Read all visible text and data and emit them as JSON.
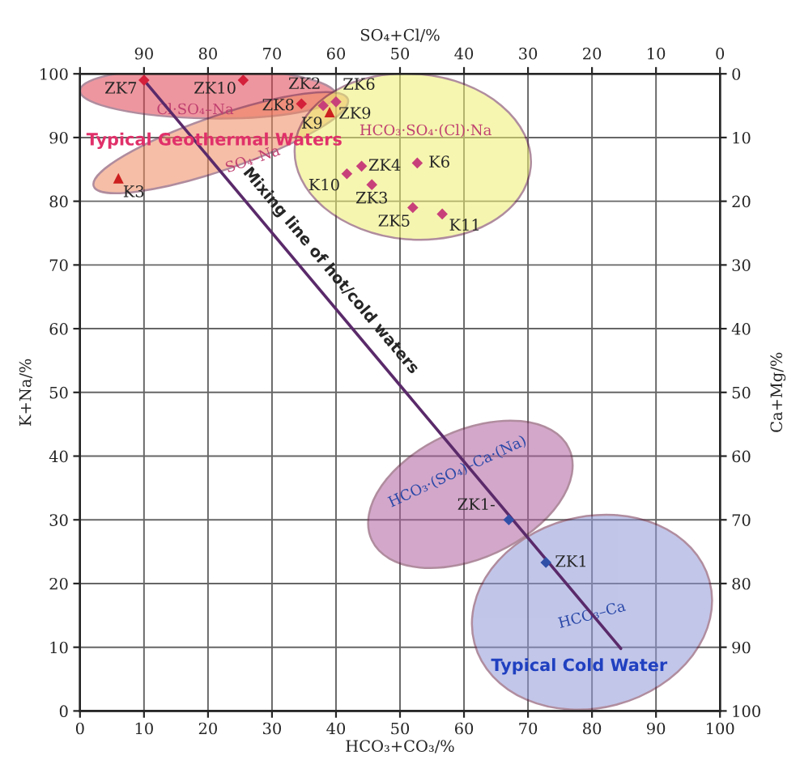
{
  "chart_data": {
    "type": "scatter",
    "xlabel": "HCO₃+CO₃/%",
    "ylabel": "K+Na/%",
    "x2label": "SO₄+Cl/%",
    "y2label": "Ca+Mg/%",
    "xlim": [
      0,
      100
    ],
    "xticks": [
      0,
      10,
      20,
      30,
      40,
      50,
      60,
      70,
      80,
      90,
      100
    ],
    "ylim": [
      0,
      100
    ],
    "yticks": [
      0,
      10,
      20,
      30,
      40,
      50,
      60,
      70,
      80,
      90,
      100
    ],
    "x2lim": [
      100,
      0
    ],
    "x2ticks": [
      {
        "value": 100,
        "label": null
      },
      90,
      80,
      70,
      60,
      50,
      40,
      30,
      20,
      10,
      0
    ],
    "y2lim": [
      100,
      0
    ],
    "y2ticks": [
      100,
      90,
      80,
      70,
      60,
      50,
      40,
      30,
      20,
      10,
      0
    ],
    "grid": true,
    "legend": false,
    "series": [
      {
        "marker": "diamond",
        "x": [
          10,
          25.5,
          34.6,
          38,
          40,
          44,
          52.7,
          41.7,
          45.6,
          52,
          56.6,
          67,
          72.8
        ],
        "values": [
          99,
          99,
          95.3,
          95,
          95.6,
          85.5,
          86,
          84.3,
          82.6,
          79,
          78,
          30,
          23.3
        ],
        "colors": [
          "#d4203a",
          "#d4203a",
          "#d4203a",
          "#c8407a",
          "#c8407a",
          "#c8407a",
          "#c8407a",
          "#c8407a",
          "#c8407a",
          "#c8407a",
          "#c8407a",
          "#3050a8",
          "#3050a8"
        ]
      },
      {
        "marker": "triangle",
        "x": [
          39,
          6
        ],
        "values": [
          94,
          83.6
        ],
        "color": "#cc1f1f"
      },
      {
        "type": "line",
        "name": "Mixing line of hot/cold waters",
        "x": [
          10,
          84.5
        ],
        "values": [
          99,
          9.8
        ],
        "color": "#5a2a6a"
      }
    ],
    "annotations": [
      {
        "text": "ZK7",
        "x": 10,
        "y": 99
      },
      {
        "text": "ZK10",
        "x": 25.5,
        "y": 99
      },
      {
        "text": "ZK8",
        "x": 34.6,
        "y": 95.3
      },
      {
        "text": "ZK2",
        "x": 38,
        "y": 95
      },
      {
        "text": "ZK6",
        "x": 40,
        "y": 95.6
      },
      {
        "text": "ZK9",
        "x": 39,
        "y": 94
      },
      {
        "text": "K9",
        "x": 39,
        "y": 94
      },
      {
        "text": "K3",
        "x": 6,
        "y": 83.6
      },
      {
        "text": "ZK4",
        "x": 44,
        "y": 85.5
      },
      {
        "text": "K6",
        "x": 52.7,
        "y": 86
      },
      {
        "text": "K10",
        "x": 41.7,
        "y": 84.3
      },
      {
        "text": "ZK3",
        "x": 45.6,
        "y": 82.6
      },
      {
        "text": "ZK5",
        "x": 52,
        "y": 79
      },
      {
        "text": "K11",
        "x": 56.6,
        "y": 78
      },
      {
        "text": "ZK1-",
        "x": 67,
        "y": 30
      },
      {
        "text": "ZK1",
        "x": 72.8,
        "y": 23.3
      },
      "Cl·SO₄–Na",
      "SO₄–Na",
      "HCO₃·SO₄·(Cl)·Na",
      "HCO₃·(SO₄)–Ca·(Na)",
      "HCO₃–Ca",
      "Typical Geothermal Waters",
      "Typical Cold Water"
    ]
  }
}
